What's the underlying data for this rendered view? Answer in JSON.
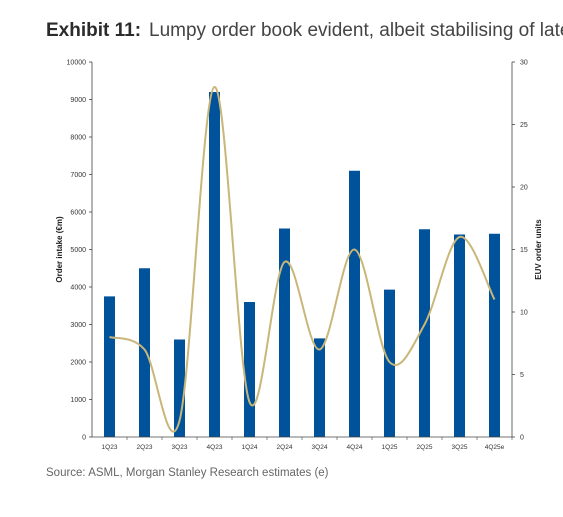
{
  "header": {
    "exhibit_label": "Exhibit 11:",
    "title": "Lumpy order book evident, albeit stabilising of late"
  },
  "footer": {
    "source": "Source: ASML, Morgan Stanley Research estimates (e)"
  },
  "colors": {
    "bar": "#00529b",
    "line": "#c9b679",
    "axis": "#444444",
    "tick_text": "#333333"
  },
  "chart_data": {
    "type": "bar",
    "categories": [
      "1Q23",
      "2Q23",
      "3Q23",
      "4Q23",
      "1Q24",
      "2Q24",
      "3Q24",
      "4Q24",
      "1Q25",
      "2Q25",
      "3Q25",
      "4Q25e"
    ],
    "series": [
      {
        "axis": "left",
        "type": "bar",
        "values": [
          3750,
          4500,
          2600,
          9200,
          3600,
          5560,
          2630,
          7100,
          3930,
          5540,
          5400,
          5420
        ]
      },
      {
        "axis": "right",
        "type": "line",
        "smooth": true,
        "values": [
          8,
          7,
          1.3,
          28,
          2.8,
          14,
          7,
          15,
          6,
          9,
          16,
          11
        ]
      }
    ],
    "ylabel": "Order intake (€m)",
    "y2label": "EUV order units",
    "ylim": [
      0,
      10000
    ],
    "y2lim": [
      0,
      30
    ],
    "yticks": [
      "0",
      "1000",
      "2000",
      "3000",
      "4000",
      "5000",
      "6000",
      "7000",
      "8000",
      "9000",
      "10000"
    ],
    "y2ticks": [
      "0",
      "5",
      "10",
      "15",
      "20",
      "25",
      "30"
    ],
    "grid": false,
    "legend": "none"
  }
}
